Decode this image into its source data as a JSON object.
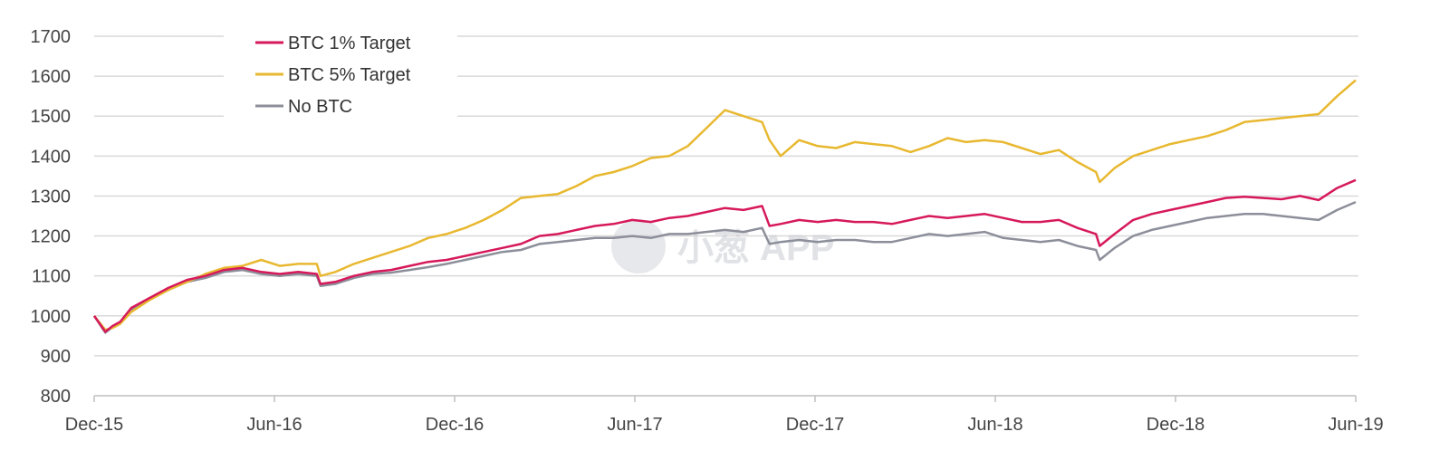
{
  "chart_data": {
    "type": "line",
    "title": "",
    "xlabel": "",
    "ylabel": "",
    "ylim": [
      800,
      1700
    ],
    "y_ticks": [
      "800",
      "900",
      "1000",
      "1100",
      "1200",
      "1300",
      "1400",
      "1500",
      "1600",
      "1700"
    ],
    "x_ticks": [
      "Dec-15",
      "Jun-16",
      "Dec-16",
      "Jun-17",
      "Dec-17",
      "Jun-18",
      "Dec-18",
      "Jun-19"
    ],
    "grid": "horizontal",
    "legend_position": "top-left",
    "watermark": "小葱 APP",
    "series": [
      {
        "name": "BTC 1% Target",
        "color": "#d6195b",
        "points": [
          [
            0,
            1000
          ],
          [
            0.15,
            960
          ],
          [
            0.25,
            975
          ],
          [
            0.35,
            985
          ],
          [
            0.5,
            1020
          ],
          [
            0.75,
            1045
          ],
          [
            1,
            1070
          ],
          [
            1.25,
            1090
          ],
          [
            1.5,
            1100
          ],
          [
            1.75,
            1115
          ],
          [
            2,
            1120
          ],
          [
            2.25,
            1110
          ],
          [
            2.5,
            1105
          ],
          [
            2.75,
            1110
          ],
          [
            3,
            1105
          ],
          [
            3.05,
            1080
          ],
          [
            3.25,
            1085
          ],
          [
            3.5,
            1100
          ],
          [
            3.75,
            1110
          ],
          [
            4,
            1115
          ],
          [
            4.25,
            1125
          ],
          [
            4.5,
            1135
          ],
          [
            4.75,
            1140
          ],
          [
            5,
            1150
          ],
          [
            5.25,
            1160
          ],
          [
            5.5,
            1170
          ],
          [
            5.75,
            1180
          ],
          [
            6,
            1200
          ],
          [
            6.25,
            1205
          ],
          [
            6.5,
            1215
          ],
          [
            6.75,
            1225
          ],
          [
            7,
            1230
          ],
          [
            7.25,
            1240
          ],
          [
            7.5,
            1235
          ],
          [
            7.75,
            1245
          ],
          [
            8,
            1250
          ],
          [
            8.25,
            1260
          ],
          [
            8.5,
            1270
          ],
          [
            8.75,
            1265
          ],
          [
            9,
            1275
          ],
          [
            9.05,
            1250
          ],
          [
            9.1,
            1225
          ],
          [
            9.25,
            1230
          ],
          [
            9.5,
            1240
          ],
          [
            9.75,
            1235
          ],
          [
            10,
            1240
          ],
          [
            10.25,
            1235
          ],
          [
            10.5,
            1235
          ],
          [
            10.75,
            1230
          ],
          [
            11,
            1240
          ],
          [
            11.25,
            1250
          ],
          [
            11.5,
            1245
          ],
          [
            11.75,
            1250
          ],
          [
            12,
            1255
          ],
          [
            12.25,
            1245
          ],
          [
            12.5,
            1235
          ],
          [
            12.75,
            1235
          ],
          [
            13,
            1240
          ],
          [
            13.25,
            1220
          ],
          [
            13.5,
            1205
          ],
          [
            13.55,
            1175
          ],
          [
            13.75,
            1205
          ],
          [
            14,
            1240
          ],
          [
            14.25,
            1255
          ],
          [
            14.5,
            1265
          ],
          [
            14.75,
            1275
          ],
          [
            15,
            1285
          ],
          [
            15.25,
            1295
          ],
          [
            15.5,
            1298
          ],
          [
            15.75,
            1295
          ],
          [
            16,
            1292
          ],
          [
            16.25,
            1300
          ],
          [
            16.5,
            1290
          ],
          [
            16.75,
            1320
          ],
          [
            17,
            1340
          ]
        ]
      },
      {
        "name": "BTC 5% Target",
        "color": "#e8b830",
        "points": [
          [
            0,
            1000
          ],
          [
            0.15,
            965
          ],
          [
            0.25,
            970
          ],
          [
            0.35,
            980
          ],
          [
            0.5,
            1010
          ],
          [
            0.75,
            1040
          ],
          [
            1,
            1065
          ],
          [
            1.25,
            1085
          ],
          [
            1.5,
            1105
          ],
          [
            1.75,
            1120
          ],
          [
            2,
            1125
          ],
          [
            2.25,
            1140
          ],
          [
            2.5,
            1125
          ],
          [
            2.75,
            1130
          ],
          [
            3,
            1130
          ],
          [
            3.05,
            1100
          ],
          [
            3.25,
            1110
          ],
          [
            3.5,
            1130
          ],
          [
            3.75,
            1145
          ],
          [
            4,
            1160
          ],
          [
            4.25,
            1175
          ],
          [
            4.5,
            1195
          ],
          [
            4.75,
            1205
          ],
          [
            5,
            1220
          ],
          [
            5.25,
            1240
          ],
          [
            5.5,
            1265
          ],
          [
            5.75,
            1295
          ],
          [
            6,
            1300
          ],
          [
            6.25,
            1305
          ],
          [
            6.5,
            1325
          ],
          [
            6.75,
            1350
          ],
          [
            7,
            1360
          ],
          [
            7.25,
            1375
          ],
          [
            7.5,
            1395
          ],
          [
            7.75,
            1400
          ],
          [
            8,
            1425
          ],
          [
            8.25,
            1470
          ],
          [
            8.5,
            1515
          ],
          [
            8.75,
            1500
          ],
          [
            9,
            1485
          ],
          [
            9.1,
            1440
          ],
          [
            9.25,
            1400
          ],
          [
            9.5,
            1440
          ],
          [
            9.75,
            1425
          ],
          [
            10,
            1420
          ],
          [
            10.25,
            1435
          ],
          [
            10.5,
            1430
          ],
          [
            10.75,
            1425
          ],
          [
            11,
            1410
          ],
          [
            11.25,
            1425
          ],
          [
            11.5,
            1445
          ],
          [
            11.75,
            1435
          ],
          [
            12,
            1440
          ],
          [
            12.25,
            1435
          ],
          [
            12.5,
            1420
          ],
          [
            12.75,
            1405
          ],
          [
            13,
            1415
          ],
          [
            13.25,
            1385
          ],
          [
            13.5,
            1360
          ],
          [
            13.55,
            1335
          ],
          [
            13.75,
            1370
          ],
          [
            14,
            1400
          ],
          [
            14.25,
            1415
          ],
          [
            14.5,
            1430
          ],
          [
            14.75,
            1440
          ],
          [
            15,
            1450
          ],
          [
            15.25,
            1465
          ],
          [
            15.5,
            1485
          ],
          [
            15.75,
            1490
          ],
          [
            16,
            1495
          ],
          [
            16.25,
            1500
          ],
          [
            16.5,
            1505
          ],
          [
            16.75,
            1550
          ],
          [
            17,
            1590
          ]
        ]
      },
      {
        "name": "No BTC",
        "color": "#8c8f9a",
        "points": [
          [
            0,
            1000
          ],
          [
            0.15,
            958
          ],
          [
            0.25,
            972
          ],
          [
            0.35,
            982
          ],
          [
            0.5,
            1015
          ],
          [
            0.75,
            1042
          ],
          [
            1,
            1065
          ],
          [
            1.25,
            1085
          ],
          [
            1.5,
            1095
          ],
          [
            1.75,
            1110
          ],
          [
            2,
            1115
          ],
          [
            2.25,
            1105
          ],
          [
            2.5,
            1100
          ],
          [
            2.75,
            1105
          ],
          [
            3,
            1100
          ],
          [
            3.05,
            1075
          ],
          [
            3.25,
            1080
          ],
          [
            3.5,
            1095
          ],
          [
            3.75,
            1105
          ],
          [
            4,
            1108
          ],
          [
            4.25,
            1115
          ],
          [
            4.5,
            1122
          ],
          [
            4.75,
            1130
          ],
          [
            5,
            1140
          ],
          [
            5.25,
            1150
          ],
          [
            5.5,
            1160
          ],
          [
            5.75,
            1165
          ],
          [
            6,
            1180
          ],
          [
            6.25,
            1185
          ],
          [
            6.5,
            1190
          ],
          [
            6.75,
            1195
          ],
          [
            7,
            1195
          ],
          [
            7.25,
            1200
          ],
          [
            7.5,
            1195
          ],
          [
            7.75,
            1205
          ],
          [
            8,
            1205
          ],
          [
            8.25,
            1210
          ],
          [
            8.5,
            1215
          ],
          [
            8.75,
            1210
          ],
          [
            9,
            1220
          ],
          [
            9.05,
            1200
          ],
          [
            9.1,
            1180
          ],
          [
            9.25,
            1185
          ],
          [
            9.5,
            1190
          ],
          [
            9.75,
            1185
          ],
          [
            10,
            1190
          ],
          [
            10.25,
            1190
          ],
          [
            10.5,
            1185
          ],
          [
            10.75,
            1185
          ],
          [
            11,
            1195
          ],
          [
            11.25,
            1205
          ],
          [
            11.5,
            1200
          ],
          [
            11.75,
            1205
          ],
          [
            12,
            1210
          ],
          [
            12.25,
            1195
          ],
          [
            12.5,
            1190
          ],
          [
            12.75,
            1185
          ],
          [
            13,
            1190
          ],
          [
            13.25,
            1175
          ],
          [
            13.5,
            1165
          ],
          [
            13.55,
            1140
          ],
          [
            13.75,
            1170
          ],
          [
            14,
            1200
          ],
          [
            14.25,
            1215
          ],
          [
            14.5,
            1225
          ],
          [
            14.75,
            1235
          ],
          [
            15,
            1245
          ],
          [
            15.25,
            1250
          ],
          [
            15.5,
            1255
          ],
          [
            15.75,
            1255
          ],
          [
            16,
            1250
          ],
          [
            16.25,
            1245
          ],
          [
            16.5,
            1240
          ],
          [
            16.75,
            1265
          ],
          [
            17,
            1285
          ]
        ]
      }
    ]
  }
}
